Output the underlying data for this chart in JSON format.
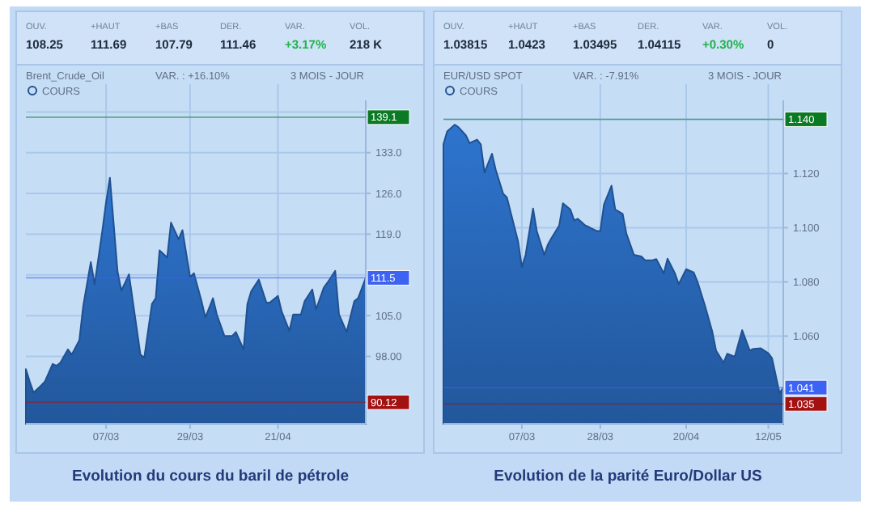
{
  "chart_data": [
    {
      "type": "area",
      "title": "Brent_Crude_Oil",
      "legend": "top left",
      "grid": true,
      "annotations": [
        "OUV.",
        "108.25",
        "+HAUT",
        "111.69",
        "+BAS",
        "107.79",
        "DER.",
        "111.46",
        "VAR.",
        "+3.17%",
        "VOL.",
        "218 K",
        "VAR. : +16.10%",
        "3 MOIS - JOUR",
        "Evolution du cours du baril de pétrole"
      ],
      "ref_lines": [
        {
          "axis": "y",
          "value": 139.1,
          "label": "139.1",
          "color": "#0b7a24"
        },
        {
          "axis": "y",
          "value": 111.5,
          "label": "111.5",
          "color": "#3d63f2"
        },
        {
          "axis": "y",
          "value": 90.12,
          "label": "90.12",
          "color": "#a31212"
        }
      ],
      "x": [
        "--02-14",
        "--02-15",
        "--02-16",
        "--02-18",
        "--02-19",
        "--02-21",
        "--02-22",
        "--02-23",
        "--02-25",
        "--02-26",
        "--02-28",
        "--03-01",
        "--03-03",
        "--03-04",
        "--03-06",
        "--03-07",
        "--03-08",
        "--03-10",
        "--03-11",
        "--03-13",
        "--03-14",
        "--03-16",
        "--03-17",
        "--03-19",
        "--03-20",
        "--03-21",
        "--03-23",
        "--03-24",
        "--03-26",
        "--03-27",
        "--03-29",
        "--03-30",
        "--04-01",
        "--04-02",
        "--04-04",
        "--04-05",
        "--04-07",
        "--04-09",
        "--04-10",
        "--04-12",
        "--04-13",
        "--04-14",
        "--04-16",
        "--04-18",
        "--04-19",
        "--04-21",
        "--04-22",
        "--04-24",
        "--04-25",
        "--04-27",
        "--04-28",
        "--04-30",
        "--05-01",
        "--05-03",
        "--05-04",
        "--05-06",
        "--05-07",
        "--05-09",
        "--05-11",
        "--05-12",
        "--05-14"
      ],
      "series": [
        {
          "name": "COURS",
          "color": "#205190",
          "values": [
            95.8,
            93.7,
            91.8,
            93.0,
            93.7,
            96.7,
            96.4,
            96.9,
            99.2,
            98.3,
            100.8,
            106.6,
            114.2,
            110.4,
            119.5,
            124.5,
            128.7,
            112.6,
            109.3,
            112.1,
            107.5,
            98.3,
            97.8,
            107.0,
            108.0,
            116.2,
            115.0,
            121.0,
            118.1,
            119.7,
            111.6,
            112.3,
            107.5,
            104.7,
            108.0,
            105.2,
            101.5,
            101.5,
            102.2,
            99.2,
            107.0,
            109.2,
            111.2,
            107.2,
            107.3,
            108.4,
            105.7,
            102.4,
            105.2,
            105.2,
            107.5,
            109.5,
            106.1,
            109.8,
            110.7,
            112.7,
            105.2,
            102.2,
            107.5,
            108.0,
            111.5
          ]
        }
      ],
      "xlim": [
        "--02-14",
        "--05-14"
      ],
      "xticks": [
        {
          "value": "--03-07",
          "label": "07/03"
        },
        {
          "value": "--03-29",
          "label": "29/03"
        },
        {
          "value": "--04-21",
          "label": "21/04"
        }
      ],
      "ylim": [
        86.4,
        142
      ],
      "yticks": [
        {
          "value": 91,
          "label": null
        },
        {
          "value": 98,
          "label": "98.00"
        },
        {
          "value": 105,
          "label": "105.0"
        },
        {
          "value": 112,
          "label": null
        },
        {
          "value": 119,
          "label": "119.0"
        },
        {
          "value": 126,
          "label": "126.0"
        },
        {
          "value": 133,
          "label": "133.0"
        },
        {
          "value": 140,
          "label": null
        }
      ]
    },
    {
      "type": "area",
      "title": "EUR/USD SPOT",
      "legend": "top left",
      "grid": true,
      "annotations": [
        "OUV.",
        "1.03815",
        "+HAUT",
        "1.0423",
        "+BAS",
        "1.03495",
        "DER.",
        "1.04115",
        "VAR.",
        "+0.30%",
        "VOL.",
        "0",
        "VAR. : -7.91%",
        "3 MOIS - JOUR",
        "Evolution de la parité Euro/Dollar US"
      ],
      "ref_lines": [
        {
          "axis": "y",
          "value": 1.14,
          "label": "1.140",
          "color": "#0b7a24"
        },
        {
          "axis": "y",
          "value": 1.041,
          "label": "1.041",
          "color": "#3d63f2"
        },
        {
          "axis": "y",
          "value": 1.035,
          "label": "1.035",
          "color": "#a31212"
        }
      ],
      "x": [
        "--02-14",
        "--02-15",
        "--02-17",
        "--02-18",
        "--02-20",
        "--02-21",
        "--02-23",
        "--02-24",
        "--02-25",
        "--02-27",
        "--02-28",
        "--03-02",
        "--03-03",
        "--03-04",
        "--03-06",
        "--03-07",
        "--03-08",
        "--03-10",
        "--03-11",
        "--03-13",
        "--03-14",
        "--03-15",
        "--03-17",
        "--03-18",
        "--03-20",
        "--03-21",
        "--03-22",
        "--03-24",
        "--03-25",
        "--03-27",
        "--03-28",
        "--03-29",
        "--03-31",
        "--04-01",
        "--04-03",
        "--04-04",
        "--04-06",
        "--04-08",
        "--04-09",
        "--04-11",
        "--04-12",
        "--04-14",
        "--04-15",
        "--04-17",
        "--04-18",
        "--04-20",
        "--04-22",
        "--04-23",
        "--04-25",
        "--04-27",
        "--04-28",
        "--04-30",
        "--05-01",
        "--05-03",
        "--05-05",
        "--05-07",
        "--05-08",
        "--05-10",
        "--05-12",
        "--05-13",
        "--05-15",
        "--05-16"
      ],
      "series": [
        {
          "name": "COURS",
          "color": "#205190",
          "values": [
            1.1308,
            1.1355,
            1.138,
            1.1371,
            1.1341,
            1.1312,
            1.1325,
            1.1308,
            1.1204,
            1.1273,
            1.1214,
            1.1125,
            1.1112,
            1.1057,
            1.0949,
            1.0855,
            1.09,
            1.1071,
            1.0988,
            1.09,
            1.0939,
            1.0963,
            1.1008,
            1.109,
            1.1067,
            1.1027,
            1.1033,
            1.1008,
            1.1002,
            1.0988,
            1.0988,
            1.1086,
            1.1155,
            1.1067,
            1.1051,
            1.0978,
            1.09,
            1.0894,
            1.088,
            1.088,
            1.0884,
            1.0831,
            1.0886,
            1.0831,
            1.0792,
            1.0847,
            1.0835,
            1.0802,
            1.0714,
            1.0616,
            1.0547,
            1.0502,
            1.0535,
            1.0524,
            1.0622,
            1.0547,
            1.0553,
            1.0555,
            1.0537,
            1.0518,
            1.039,
            1.041
          ]
        }
      ],
      "xlim": [
        "--02-14",
        "--05-16"
      ],
      "xticks": [
        {
          "value": "--03-07",
          "label": "07/03"
        },
        {
          "value": "--03-28",
          "label": "28/03"
        },
        {
          "value": "--04-20",
          "label": "20/04"
        },
        {
          "value": "--05-12",
          "label": "12/05"
        }
      ],
      "ylim": [
        1.0276,
        1.147
      ],
      "yticks": [
        {
          "value": 1.04,
          "label": null
        },
        {
          "value": 1.06,
          "label": "1.060"
        },
        {
          "value": 1.08,
          "label": "1.080"
        },
        {
          "value": 1.1,
          "label": "1.100"
        },
        {
          "value": 1.12,
          "label": "1.120"
        },
        {
          "value": 1.14,
          "label": null
        }
      ]
    }
  ]
}
